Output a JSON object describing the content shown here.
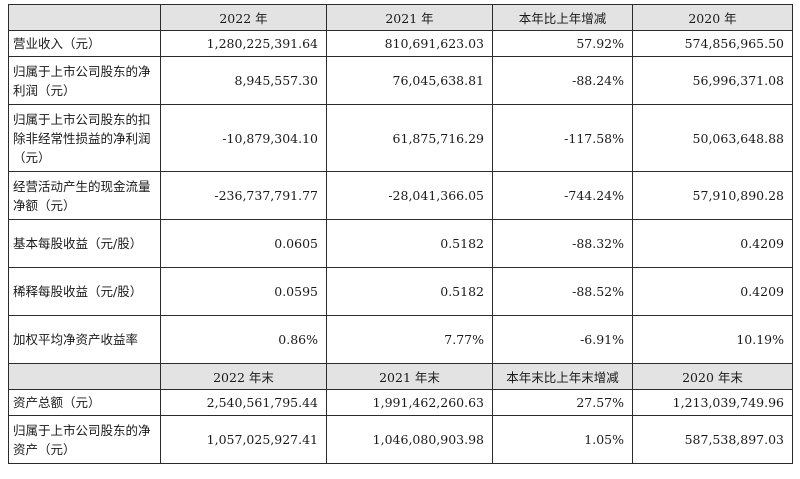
{
  "header1": [
    "2022 年",
    "2021 年",
    "本年比上年增减",
    "2020 年"
  ],
  "rows1": [
    {
      "label": "营业收入（元）",
      "values": [
        "1,280,225,391.64",
        "810,691,623.03",
        "57.92%",
        "574,856,965.50"
      ]
    },
    {
      "label": "归属于上市公司股东的净利润（元）",
      "values": [
        "8,945,557.30",
        "76,045,638.81",
        "-88.24%",
        "56,996,371.08"
      ]
    },
    {
      "label": "归属于上市公司股东的扣除非经常性损益的净利润（元）",
      "values": [
        "-10,879,304.10",
        "61,875,716.29",
        "-117.58%",
        "50,063,648.88"
      ]
    },
    {
      "label": "经营活动产生的现金流量净额（元）",
      "values": [
        "-236,737,791.77",
        "-28,041,366.05",
        "-744.24%",
        "57,910,890.28"
      ]
    },
    {
      "label": "基本每股收益（元/股）",
      "values": [
        "0.0605",
        "0.5182",
        "-88.32%",
        "0.4209"
      ]
    },
    {
      "label": "稀释每股收益（元/股）",
      "values": [
        "0.0595",
        "0.5182",
        "-88.52%",
        "0.4209"
      ]
    },
    {
      "label": "加权平均净资产收益率",
      "values": [
        "0.86%",
        "7.77%",
        "-6.91%",
        "10.19%"
      ]
    }
  ],
  "header2": [
    "2022 年末",
    "2021 年末",
    "本年末比上年末增减",
    "2020 年末"
  ],
  "rows2": [
    {
      "label": "资产总额（元）",
      "values": [
        "2,540,561,795.44",
        "1,991,462,260.63",
        "27.57%",
        "1,213,039,749.96"
      ]
    },
    {
      "label": "归属于上市公司股东的净资产（元）",
      "values": [
        "1,057,025,927.41",
        "1,046,080,903.98",
        "1.05%",
        "587,538,897.03"
      ]
    }
  ]
}
